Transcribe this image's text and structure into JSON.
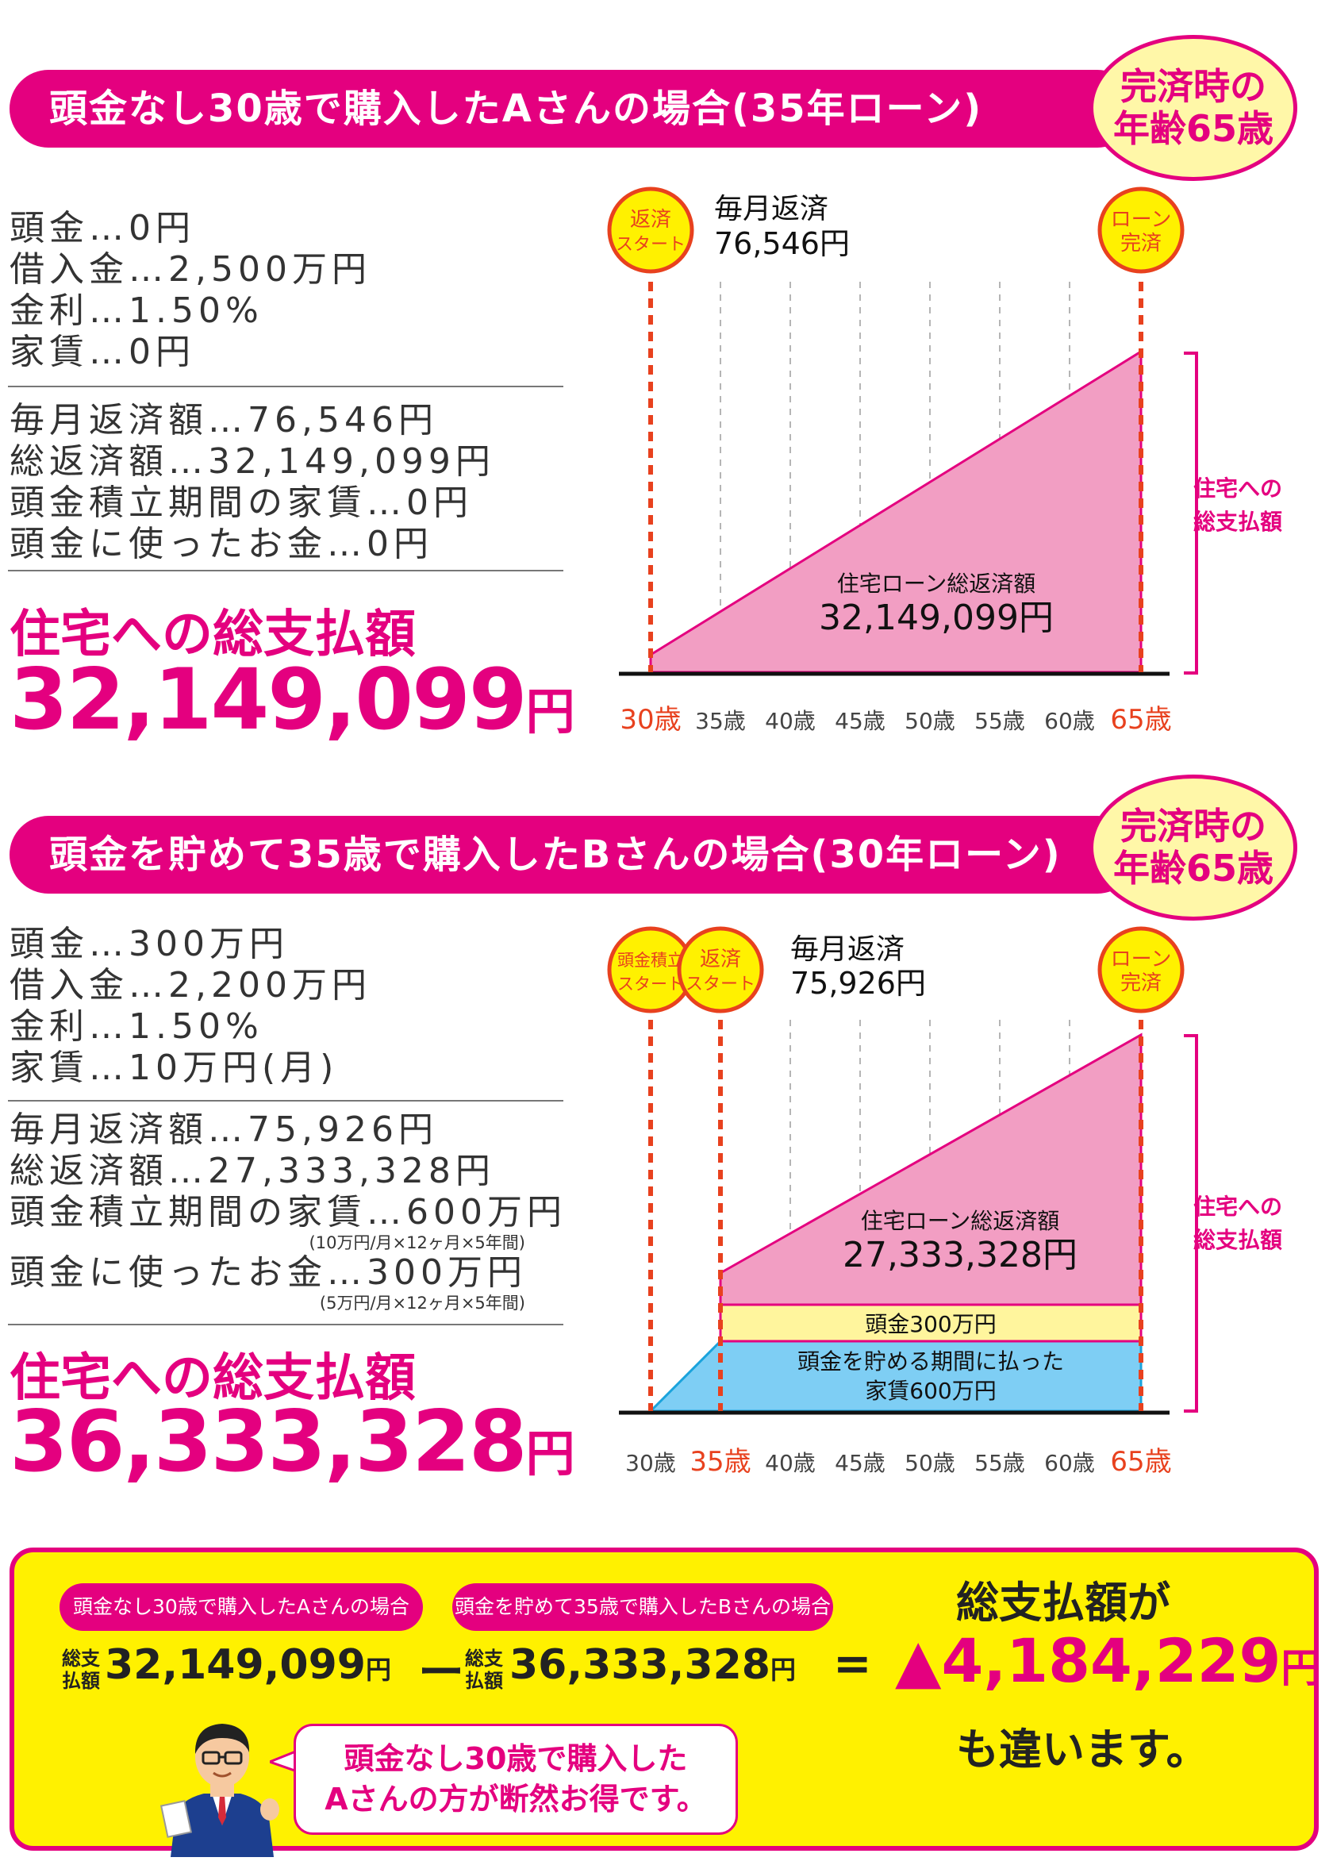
{
  "colors": {
    "brand": "#e4007f",
    "pink_fill": "#f29ec3",
    "yellow": "#fff100",
    "light_yellow": "#fff59d",
    "blue": "#7ecef4",
    "marker_red": "#e8411e"
  },
  "sectionA": {
    "banner": "頭金なし30歳で購入したAさんの場合(35年ローン)",
    "badge_line1": "完済時の",
    "badge_line2": "年齢65歳",
    "facts": [
      "頭金…0円",
      "借入金…2,500万円",
      "金利…1.50%",
      "家賃…0円"
    ],
    "results": [
      "毎月返済額…76,546円",
      "総返済額…32,149,099円",
      "頭金積立期間の家賃…0円",
      "頭金に使ったお金…0円"
    ],
    "total_label": "住宅への総支払額",
    "total_value": "32,149,099",
    "total_unit": "円",
    "chart": {
      "marker_start": [
        "返済",
        "スタート"
      ],
      "marker_end": [
        "ローン",
        "完済"
      ],
      "monthly_label": "毎月返済",
      "monthly_value": "76,546円",
      "area_label": "住宅ローン総返済額",
      "area_value": "32,149,099円",
      "bracket_label": [
        "住宅への",
        "総支払額"
      ],
      "ages": [
        "30歳",
        "35歳",
        "40歳",
        "45歳",
        "50歳",
        "55歳",
        "60歳",
        "65歳"
      ],
      "highlight_ages": [
        0,
        7
      ]
    }
  },
  "sectionB": {
    "banner": "頭金を貯めて35歳で購入したBさんの場合(30年ローン)",
    "badge_line1": "完済時の",
    "badge_line2": "年齢65歳",
    "facts": [
      "頭金…300万円",
      "借入金…2,200万円",
      "金利…1.50%",
      "家賃…10万円(月)"
    ],
    "results": [
      "毎月返済額…75,926円",
      "総返済額…27,333,328円",
      "頭金積立期間の家賃…600万円",
      "頭金に使ったお金…300万円"
    ],
    "note_rent": "(10万円/月×12ヶ月×5年間)",
    "note_down": "(5万円/月×12ヶ月×5年間)",
    "total_label": "住宅への総支払額",
    "total_value": "36,333,328",
    "total_unit": "円",
    "chart": {
      "marker_save": [
        "頭金積立",
        "スタート"
      ],
      "marker_start": [
        "返済",
        "スタート"
      ],
      "marker_end": [
        "ローン",
        "完済"
      ],
      "monthly_label": "毎月返済",
      "monthly_value": "75,926円",
      "area_label": "住宅ローン総返済額",
      "area_value": "27,333,328円",
      "down_label": "頭金300万円",
      "rent_label": [
        "頭金を貯める期間に払った",
        "家賃600万円"
      ],
      "bracket_label": [
        "住宅への",
        "総支払額"
      ],
      "ages": [
        "30歳",
        "35歳",
        "40歳",
        "45歳",
        "50歳",
        "55歳",
        "60歳",
        "65歳"
      ],
      "highlight_ages": [
        1,
        7
      ]
    }
  },
  "summary": {
    "pill_a": "頭金なし30歳で購入したAさんの場合",
    "pill_b": "頭金を貯めて35歳で購入したBさんの場合",
    "mini_label": [
      "総支",
      "払額"
    ],
    "amount_a": "32,149,099",
    "amount_b": "36,333,328",
    "unit": "円",
    "minus": "ー",
    "equals": "=",
    "result_head": "総支払額が",
    "result_amount": "▲4,184,229",
    "result_tail": "も違います。",
    "bubble_line1": "頭金なし30歳で購入した",
    "bubble_line2": "Aさんの方が断然お得です。"
  }
}
